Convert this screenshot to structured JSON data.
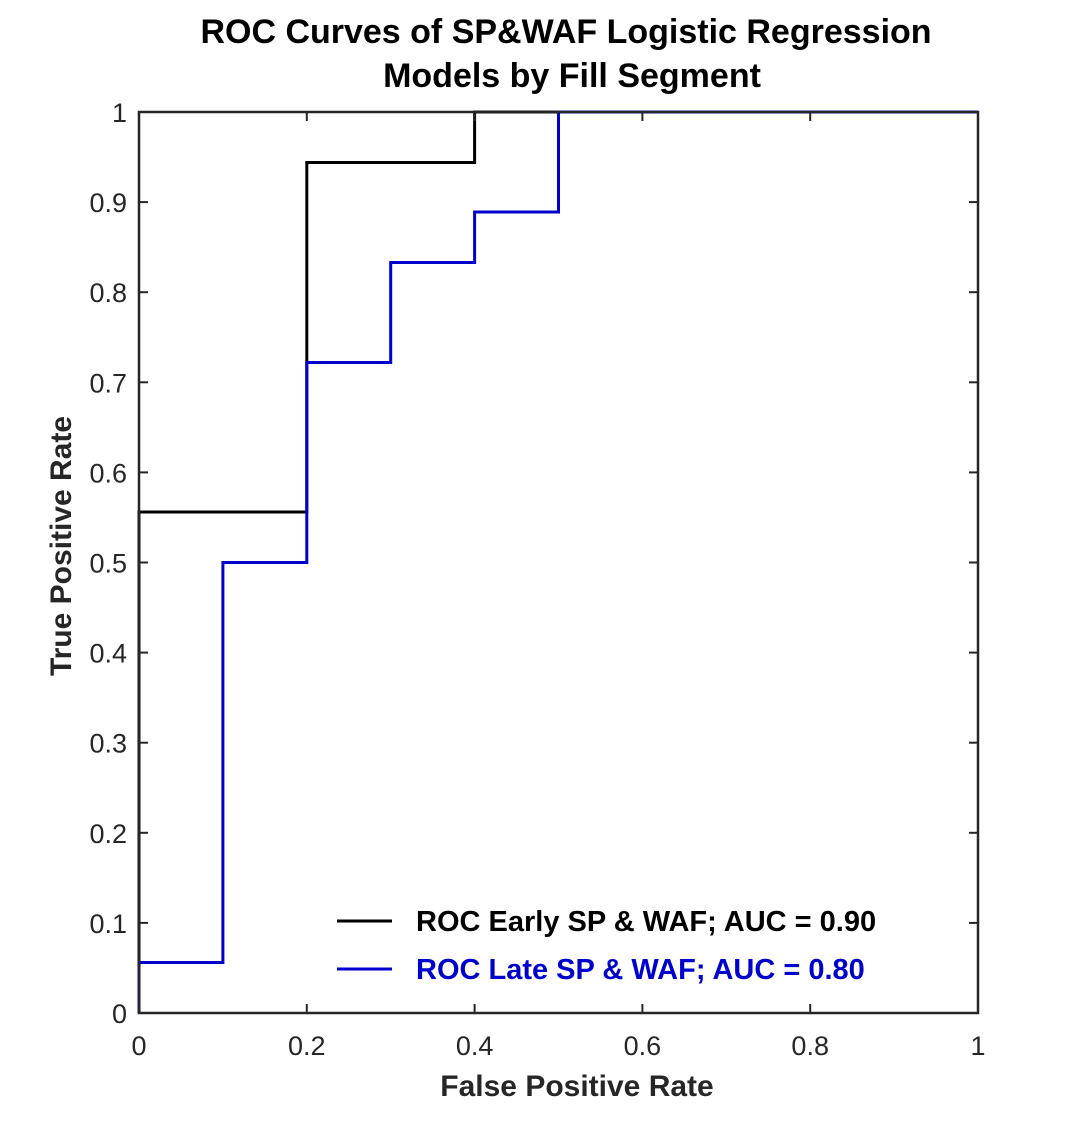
{
  "chart_data": {
    "type": "line",
    "title": [
      "ROC Curves of SP&WAF Logistic Regression",
      "Models by Fill Segment"
    ],
    "xlabel": "False Positive Rate",
    "ylabel": "True Positive Rate",
    "xlim": [
      0,
      1
    ],
    "ylim": [
      0,
      1
    ],
    "xticks": [
      0,
      0.2,
      0.4,
      0.6,
      0.8,
      1
    ],
    "xtick_labels": [
      "0",
      "0.2",
      "0.4",
      "0.6",
      "0.8",
      "1"
    ],
    "yticks": [
      0,
      0.1,
      0.2,
      0.3,
      0.4,
      0.5,
      0.6,
      0.7,
      0.8,
      0.9,
      1
    ],
    "ytick_labels": [
      "0",
      "0.1",
      "0.2",
      "0.3",
      "0.4",
      "0.5",
      "0.6",
      "0.7",
      "0.8",
      "0.9",
      "1"
    ],
    "grid": false,
    "legend_position": "bottom-right",
    "series": [
      {
        "name": "ROC Early SP & WAF; AUC = 0.90",
        "color": "#000000",
        "x": [
          0,
          0,
          0.2,
          0.2,
          0.4,
          0.4,
          1
        ],
        "y": [
          0,
          0.556,
          0.556,
          0.944,
          0.944,
          1,
          1
        ]
      },
      {
        "name": "ROC Late SP & WAF; AUC = 0.80",
        "color": "#0000cc",
        "x": [
          0,
          0,
          0.1,
          0.1,
          0.2,
          0.2,
          0.3,
          0.3,
          0.4,
          0.4,
          0.5,
          0.5,
          1
        ],
        "y": [
          0,
          0.056,
          0.056,
          0.5,
          0.5,
          0.722,
          0.722,
          0.833,
          0.833,
          0.889,
          0.889,
          1,
          1
        ]
      }
    ]
  }
}
